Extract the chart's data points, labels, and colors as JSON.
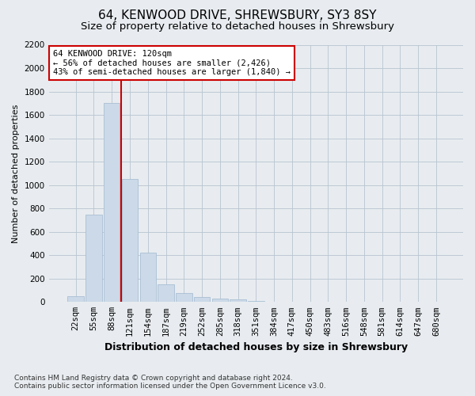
{
  "title": "64, KENWOOD DRIVE, SHREWSBURY, SY3 8SY",
  "subtitle": "Size of property relative to detached houses in Shrewsbury",
  "xlabel": "Distribution of detached houses by size in Shrewsbury",
  "ylabel": "Number of detached properties",
  "footer_line1": "Contains HM Land Registry data © Crown copyright and database right 2024.",
  "footer_line2": "Contains public sector information licensed under the Open Government Licence v3.0.",
  "categories": [
    "22sqm",
    "55sqm",
    "88sqm",
    "121sqm",
    "154sqm",
    "187sqm",
    "219sqm",
    "252sqm",
    "285sqm",
    "318sqm",
    "351sqm",
    "384sqm",
    "417sqm",
    "450sqm",
    "483sqm",
    "516sqm",
    "548sqm",
    "581sqm",
    "614sqm",
    "647sqm",
    "680sqm"
  ],
  "values": [
    50,
    750,
    1700,
    1050,
    420,
    150,
    75,
    40,
    30,
    25,
    10,
    5,
    2,
    1,
    1,
    0,
    0,
    0,
    0,
    0,
    0
  ],
  "bar_color": "#ccd9e8",
  "bar_edge_color": "#a8bfd4",
  "marker_color": "#cc0000",
  "annotation_text": "64 KENWOOD DRIVE: 120sqm\n← 56% of detached houses are smaller (2,426)\n43% of semi-detached houses are larger (1,840) →",
  "annotation_box_facecolor": "#ffffff",
  "annotation_box_edgecolor": "#cc0000",
  "ylim": [
    0,
    2200
  ],
  "yticks": [
    0,
    200,
    400,
    600,
    800,
    1000,
    1200,
    1400,
    1600,
    1800,
    2000,
    2200
  ],
  "background_color": "#e8ecf0",
  "plot_background": "#e8ecf0",
  "grid_color": "#b8c4d0",
  "title_fontsize": 11,
  "subtitle_fontsize": 9.5,
  "xlabel_fontsize": 9,
  "ylabel_fontsize": 8,
  "tick_fontsize": 7.5,
  "annotation_fontsize": 7.5,
  "footer_fontsize": 6.5
}
